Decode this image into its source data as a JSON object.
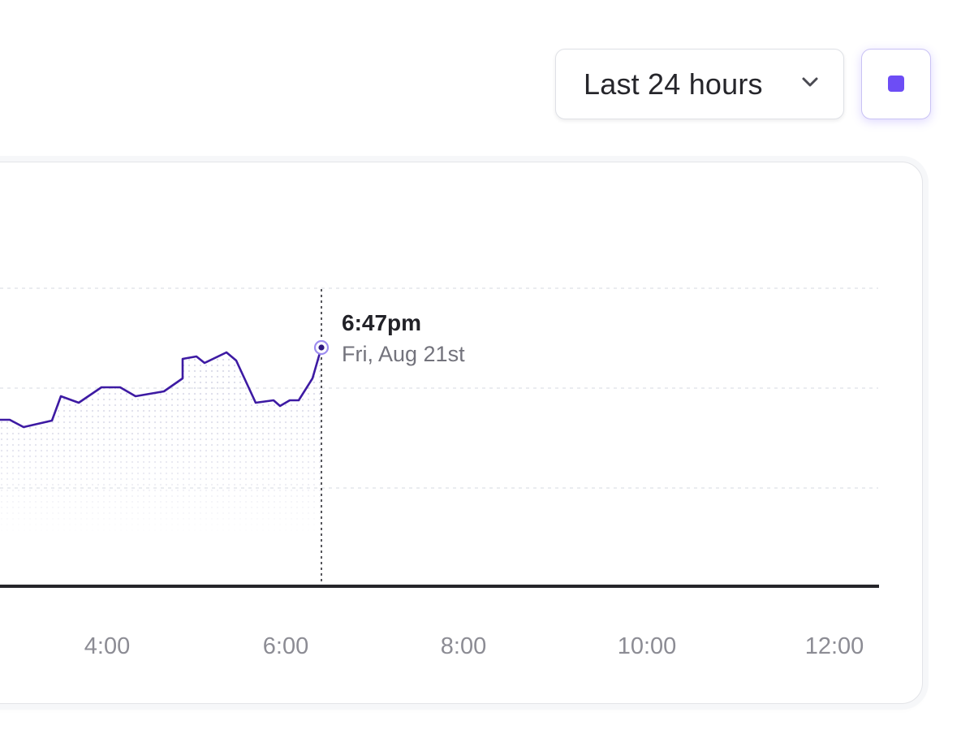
{
  "toolbar": {
    "range_label": "Last 24 hours",
    "range_icon": "chevron-down-icon",
    "stop_icon": "stop-square-icon",
    "accent_color": "#6d4df5"
  },
  "chart_data": {
    "type": "area",
    "line_color": "#3d1aa3",
    "x_ticks": [
      "4:00",
      "6:00",
      "8:00",
      "10:00",
      "12:00"
    ],
    "grid": true,
    "tooltip": {
      "time": "6:47pm",
      "date": "Fri, Aug 21st"
    }
  }
}
